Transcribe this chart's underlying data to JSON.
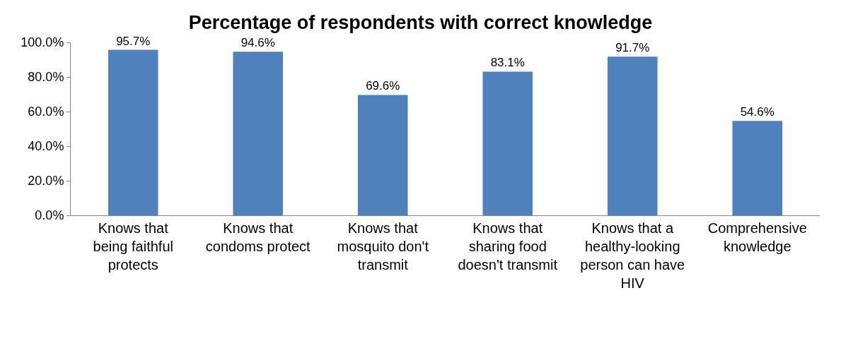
{
  "chart_data": {
    "type": "bar",
    "title": "Percentage of respondents with correct knowledge",
    "categories": [
      "Knows that\nbeing faithful\nprotects",
      "Knows that\ncondoms protect",
      "Knows that\nmosquito don't\ntransmit",
      "Knows that\nsharing food\ndoesn't transmit",
      "Knows that a\nhealthy-looking\nperson can have\nHIV",
      "Comprehensive\nknowledge"
    ],
    "values": [
      95.7,
      94.6,
      69.6,
      83.1,
      91.7,
      54.6
    ],
    "value_labels": [
      "95.7%",
      "94.6%",
      "69.6%",
      "83.1%",
      "91.7%",
      "54.6%"
    ],
    "color": "#4f81bd",
    "ylim": [
      0,
      100
    ],
    "yticks": [
      {
        "value": 0,
        "label": "0.0%"
      },
      {
        "value": 20,
        "label": "20.0%"
      },
      {
        "value": 40,
        "label": "40.0%"
      },
      {
        "value": 60,
        "label": "60.0%"
      },
      {
        "value": 80,
        "label": "80.0%"
      },
      {
        "value": 100,
        "label": "100.0%"
      }
    ],
    "legend": false
  }
}
